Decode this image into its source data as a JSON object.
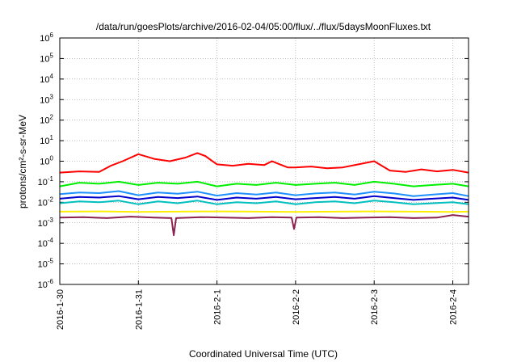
{
  "chart_data": {
    "type": "line",
    "title": "/data/run/goesPlots/archive/2016-02-04/05:00/flux/../flux/5daysMoonFluxes.txt",
    "xlabel": "Coordinated Universal Time (UTC)",
    "ylabel": "protons/cm²-s-sr-MeV",
    "yscale": "log",
    "ylim": [
      1e-06,
      1000000.0
    ],
    "xlim": [
      "2016-01-30 00:00",
      "2016-02-04 05:00"
    ],
    "grid": true,
    "yticks": [
      {
        "base": "10",
        "exp": "-6"
      },
      {
        "base": "10",
        "exp": "-5"
      },
      {
        "base": "10",
        "exp": "-4"
      },
      {
        "base": "10",
        "exp": "-3"
      },
      {
        "base": "10",
        "exp": "-2"
      },
      {
        "base": "10",
        "exp": "-1"
      },
      {
        "base": "10",
        "exp": "0"
      },
      {
        "base": "10",
        "exp": "1"
      },
      {
        "base": "10",
        "exp": "2"
      },
      {
        "base": "10",
        "exp": "3"
      },
      {
        "base": "10",
        "exp": "4"
      },
      {
        "base": "10",
        "exp": "5"
      },
      {
        "base": "10",
        "exp": "6"
      }
    ],
    "xticks": [
      "2016-1-30",
      "2016-1-31",
      "2016-2-1",
      "2016-2-2",
      "2016-2-3",
      "2016-2-4"
    ],
    "series": [
      {
        "color": "#ff0000",
        "x": [
          0,
          0.25,
          0.5,
          0.65,
          0.8,
          1.0,
          1.2,
          1.4,
          1.6,
          1.75,
          1.85,
          2.0,
          2.2,
          2.4,
          2.6,
          2.7,
          2.8,
          2.9,
          3.0,
          3.2,
          3.4,
          3.6,
          3.8,
          4.0,
          4.2,
          4.4,
          4.6,
          4.8,
          5.0,
          5.2
        ],
        "y": [
          0.28,
          0.32,
          0.3,
          0.6,
          1.0,
          2.2,
          1.3,
          1.0,
          1.5,
          2.5,
          1.8,
          0.7,
          0.6,
          0.75,
          0.65,
          1.0,
          0.7,
          0.5,
          0.5,
          0.55,
          0.45,
          0.5,
          0.7,
          1.0,
          0.35,
          0.3,
          0.4,
          0.32,
          0.38,
          0.28
        ]
      },
      {
        "color": "#00ee00",
        "x": [
          0,
          0.25,
          0.5,
          0.75,
          1.0,
          1.25,
          1.5,
          1.75,
          2.0,
          2.25,
          2.5,
          2.75,
          3.0,
          3.25,
          3.5,
          3.75,
          4.0,
          4.25,
          4.5,
          4.75,
          5.0,
          5.2
        ],
        "y": [
          0.06,
          0.09,
          0.08,
          0.1,
          0.07,
          0.09,
          0.08,
          0.1,
          0.06,
          0.08,
          0.07,
          0.09,
          0.07,
          0.08,
          0.09,
          0.07,
          0.1,
          0.08,
          0.06,
          0.07,
          0.08,
          0.06
        ]
      },
      {
        "color": "#1e90ff",
        "x": [
          0,
          0.25,
          0.5,
          0.75,
          1.0,
          1.25,
          1.5,
          1.75,
          2.0,
          2.25,
          2.5,
          2.75,
          3.0,
          3.25,
          3.5,
          3.75,
          4.0,
          4.25,
          4.5,
          4.75,
          5.0,
          5.2
        ],
        "y": [
          0.025,
          0.03,
          0.028,
          0.035,
          0.022,
          0.03,
          0.026,
          0.033,
          0.021,
          0.028,
          0.024,
          0.03,
          0.022,
          0.027,
          0.03,
          0.024,
          0.033,
          0.027,
          0.02,
          0.024,
          0.028,
          0.02
        ]
      },
      {
        "color": "#0000cd",
        "x": [
          0,
          0.25,
          0.5,
          0.75,
          1.0,
          1.25,
          1.5,
          1.75,
          2.0,
          2.25,
          2.5,
          2.75,
          3.0,
          3.25,
          3.5,
          3.75,
          4.0,
          4.25,
          4.5,
          4.75,
          5.0,
          5.2
        ],
        "y": [
          0.015,
          0.018,
          0.017,
          0.02,
          0.014,
          0.018,
          0.016,
          0.019,
          0.013,
          0.017,
          0.015,
          0.018,
          0.014,
          0.016,
          0.018,
          0.015,
          0.02,
          0.016,
          0.013,
          0.015,
          0.017,
          0.013
        ]
      },
      {
        "color": "#00bfbf",
        "x": [
          0,
          0.25,
          0.5,
          0.75,
          1.0,
          1.25,
          1.5,
          1.75,
          2.0,
          2.25,
          2.5,
          2.75,
          3.0,
          3.25,
          3.5,
          3.75,
          4.0,
          4.25,
          4.5,
          4.75,
          5.0,
          5.2
        ],
        "y": [
          0.009,
          0.011,
          0.01,
          0.012,
          0.008,
          0.011,
          0.009,
          0.012,
          0.008,
          0.01,
          0.009,
          0.011,
          0.008,
          0.01,
          0.011,
          0.009,
          0.012,
          0.01,
          0.008,
          0.009,
          0.01,
          0.008
        ]
      },
      {
        "color": "#ffee00",
        "x": [
          0,
          0.5,
          1.0,
          1.5,
          2.0,
          2.5,
          3.0,
          3.5,
          4.0,
          4.5,
          5.0,
          5.2
        ],
        "y": [
          0.0035,
          0.0036,
          0.0034,
          0.0035,
          0.0036,
          0.0035,
          0.0034,
          0.0035,
          0.0036,
          0.0035,
          0.0034,
          0.0035
        ]
      },
      {
        "color": "#8b2252",
        "x": [
          0,
          0.3,
          0.6,
          0.9,
          1.2,
          1.42,
          1.45,
          1.48,
          1.8,
          2.1,
          2.4,
          2.7,
          2.95,
          2.98,
          3.01,
          3.3,
          3.6,
          3.9,
          4.2,
          4.5,
          4.8,
          5.0,
          5.2
        ],
        "y": [
          0.0018,
          0.0019,
          0.0017,
          0.002,
          0.0018,
          0.0017,
          0.00025,
          0.0017,
          0.0019,
          0.0018,
          0.0017,
          0.0019,
          0.0018,
          0.0005,
          0.0018,
          0.0019,
          0.0017,
          0.0018,
          0.0019,
          0.0017,
          0.0018,
          0.0024,
          0.002
        ]
      }
    ]
  }
}
